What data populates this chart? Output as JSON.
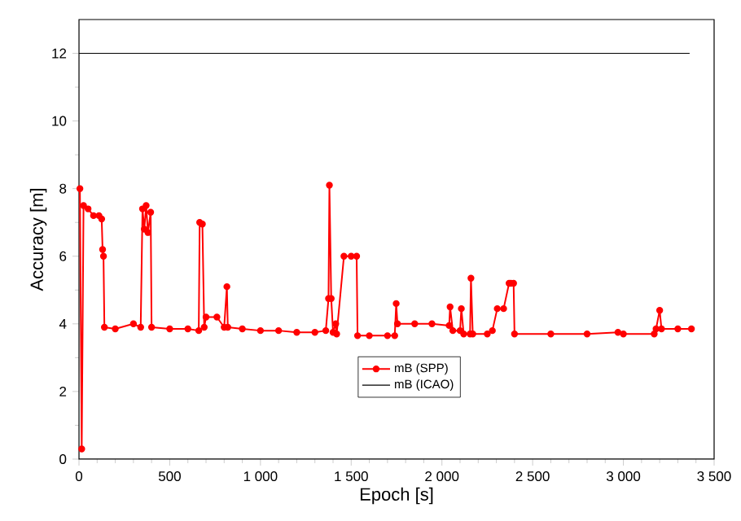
{
  "chart_data": {
    "type": "line",
    "xlabel": "Epoch [s]",
    "ylabel": "Accuracy [m]",
    "xlim": [
      0,
      3500
    ],
    "ylim": [
      0,
      13
    ],
    "xticks": [
      0,
      500,
      {
        "value": 1000,
        "label": "1 000"
      },
      {
        "value": 1500,
        "label": "1 500"
      },
      {
        "value": 2000,
        "label": "2 000"
      },
      {
        "value": 2500,
        "label": "2 500"
      },
      {
        "value": 3000,
        "label": "3 000"
      },
      {
        "value": 3500,
        "label": "3 500"
      }
    ],
    "yticks": [
      0,
      2,
      4,
      6,
      8,
      10,
      12
    ],
    "legend": "bottom",
    "grid": false,
    "series": [
      {
        "name": "mB (SPP)",
        "color": "#ff0000",
        "marker": "circle",
        "x": [
          5,
          15,
          25,
          50,
          80,
          110,
          125,
          130,
          135,
          140,
          200,
          300,
          340,
          350,
          360,
          370,
          380,
          395,
          400,
          500,
          600,
          660,
          665,
          680,
          690,
          700,
          760,
          800,
          815,
          820,
          900,
          1000,
          1100,
          1200,
          1300,
          1360,
          1375,
          1380,
          1390,
          1400,
          1415,
          1420,
          1460,
          1500,
          1530,
          1535,
          1600,
          1700,
          1740,
          1748,
          1755,
          1850,
          1945,
          2040,
          2045,
          2060,
          2100,
          2107,
          2120,
          2155,
          2160,
          2170,
          2250,
          2278,
          2305,
          2340,
          2370,
          2380,
          2395,
          2400,
          2600,
          2800,
          2970,
          3000,
          3170,
          3180,
          3200,
          3210,
          3300,
          3375
        ],
        "values": [
          8.0,
          0.3,
          7.5,
          7.4,
          7.2,
          7.2,
          7.1,
          6.2,
          6.0,
          3.9,
          3.85,
          4.0,
          3.9,
          7.4,
          6.8,
          7.5,
          6.7,
          7.3,
          3.9,
          3.85,
          3.85,
          3.8,
          7.0,
          6.95,
          3.9,
          4.2,
          4.2,
          3.9,
          5.1,
          3.9,
          3.85,
          3.8,
          3.8,
          3.75,
          3.75,
          3.8,
          4.75,
          8.1,
          4.75,
          3.75,
          4.0,
          3.7,
          6.0,
          6.0,
          6.0,
          3.65,
          3.65,
          3.65,
          3.65,
          4.6,
          4.0,
          4.0,
          4.0,
          3.95,
          4.5,
          3.8,
          3.8,
          4.45,
          3.7,
          3.7,
          5.35,
          3.7,
          3.7,
          3.8,
          4.45,
          4.45,
          5.2,
          5.2,
          5.2,
          3.7,
          3.7,
          3.7,
          3.75,
          3.7,
          3.7,
          3.85,
          4.4,
          3.85,
          3.85,
          3.85
        ]
      },
      {
        "name": "mB (ICAO)",
        "color": "#000000",
        "marker": "none",
        "x": [
          0,
          3365
        ],
        "values": [
          12,
          12
        ]
      }
    ]
  }
}
